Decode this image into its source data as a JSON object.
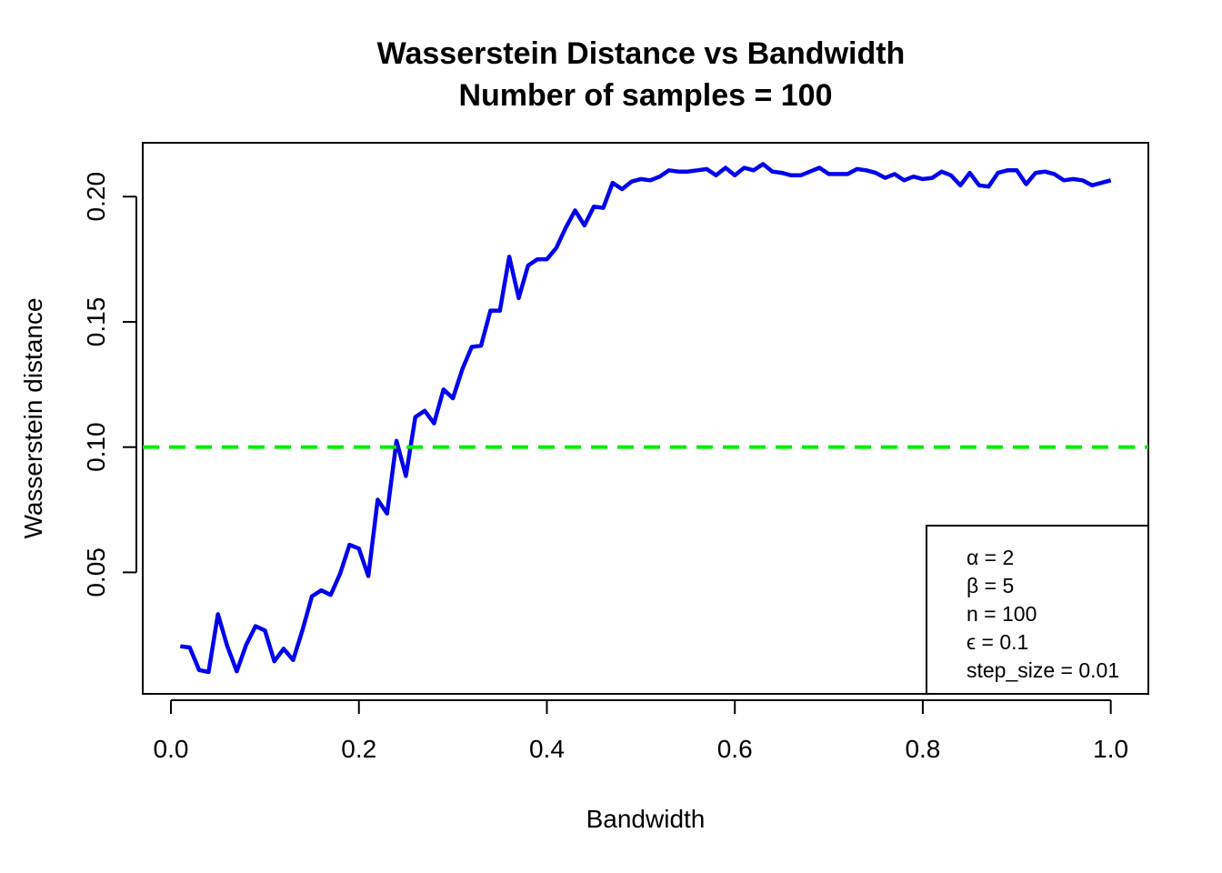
{
  "chart_data": {
    "type": "line",
    "title": "Wasserstein Distance vs Bandwidth",
    "subtitle": "Number of samples = 100",
    "xlabel": "Bandwidth",
    "ylabel": "Wasserstein distance",
    "xlim": [
      -0.03,
      1.04
    ],
    "ylim": [
      0.0015,
      0.2215
    ],
    "x_ticks": [
      0.0,
      0.2,
      0.4,
      0.6,
      0.8,
      1.0
    ],
    "x_tick_labels": [
      "0.0",
      "0.2",
      "0.4",
      "0.6",
      "0.8",
      "1.0"
    ],
    "y_ticks": [
      0.05,
      0.1,
      0.15,
      0.2
    ],
    "y_tick_labels": [
      "0.05",
      "0.10",
      "0.15",
      "0.20"
    ],
    "grid": false,
    "series": [
      {
        "color": "#0000ee",
        "style": "solid",
        "x": [
          0.01,
          0.02,
          0.03,
          0.04,
          0.05,
          0.06,
          0.07,
          0.08,
          0.09,
          0.1,
          0.11,
          0.12,
          0.13,
          0.14,
          0.15,
          0.16,
          0.17,
          0.18,
          0.19,
          0.2,
          0.21,
          0.22,
          0.23,
          0.24,
          0.25,
          0.26,
          0.27,
          0.28,
          0.29,
          0.3,
          0.31,
          0.32,
          0.33,
          0.34,
          0.35,
          0.36,
          0.37,
          0.38,
          0.39,
          0.4,
          0.41,
          0.42,
          0.43,
          0.44,
          0.45,
          0.46,
          0.47,
          0.48,
          0.49,
          0.5,
          0.51,
          0.52,
          0.53,
          0.54,
          0.55,
          0.56,
          0.57,
          0.58,
          0.59,
          0.6,
          0.61,
          0.62,
          0.63,
          0.64,
          0.65,
          0.66,
          0.67,
          0.68,
          0.69,
          0.7,
          0.71,
          0.72,
          0.73,
          0.74,
          0.75,
          0.76,
          0.77,
          0.78,
          0.79,
          0.8,
          0.81,
          0.82,
          0.83,
          0.84,
          0.85,
          0.86,
          0.87,
          0.88,
          0.89,
          0.9,
          0.91,
          0.92,
          0.93,
          0.94,
          0.95,
          0.96,
          0.97,
          0.98,
          0.99,
          1.0
        ],
        "y": [
          0.0205,
          0.02,
          0.011,
          0.0102,
          0.0333,
          0.0205,
          0.0105,
          0.021,
          0.0285,
          0.0268,
          0.0145,
          0.0195,
          0.015,
          0.027,
          0.0405,
          0.0428,
          0.041,
          0.0495,
          0.061,
          0.0595,
          0.0485,
          0.079,
          0.0735,
          0.1025,
          0.0885,
          0.112,
          0.1145,
          0.1095,
          0.123,
          0.1195,
          0.131,
          0.14,
          0.1405,
          0.1545,
          0.1545,
          0.176,
          0.1595,
          0.1725,
          0.175,
          0.175,
          0.1795,
          0.1875,
          0.1945,
          0.1885,
          0.196,
          0.1955,
          0.2055,
          0.203,
          0.206,
          0.207,
          0.2065,
          0.208,
          0.2105,
          0.21,
          0.21,
          0.2105,
          0.211,
          0.2085,
          0.2115,
          0.2085,
          0.2115,
          0.2105,
          0.213,
          0.21,
          0.2095,
          0.2085,
          0.2085,
          0.21,
          0.2115,
          0.209,
          0.209,
          0.209,
          0.211,
          0.2105,
          0.2095,
          0.2075,
          0.209,
          0.2065,
          0.208,
          0.207,
          0.2075,
          0.21,
          0.2085,
          0.2045,
          0.2095,
          0.2045,
          0.204,
          0.2095,
          0.2105,
          0.2105,
          0.205,
          0.2095,
          0.21,
          0.209,
          0.2065,
          0.207,
          0.2065,
          0.2045,
          0.2055,
          0.2065
        ]
      },
      {
        "color": "#00ee00",
        "style": "dashed",
        "type": "hline",
        "y": 0.1
      }
    ],
    "legend": {
      "placement": "bottom-right",
      "entries": [
        "α = 2",
        "β = 5",
        "n = 100",
        "ϵ = 0.1",
        "step_size = 0.01"
      ]
    }
  }
}
